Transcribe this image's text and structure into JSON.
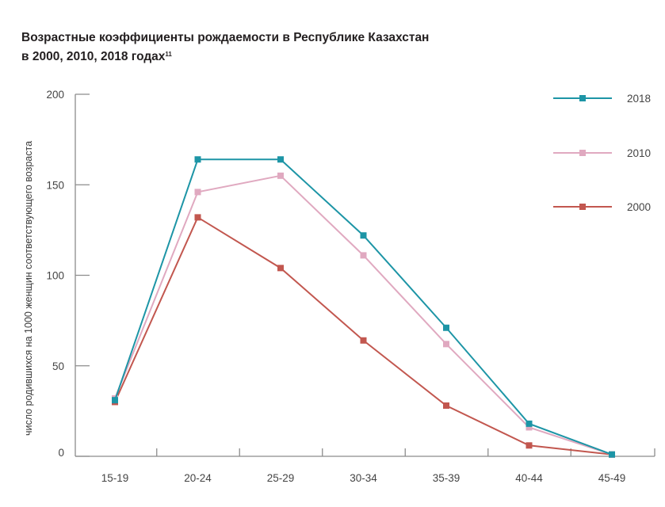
{
  "title": {
    "line1": "Возрастные коэффициенты рождаемости в Республике Казахстан",
    "line2": "в 2000, 2010, 2018 годах",
    "footnote": "11"
  },
  "chart_data": {
    "type": "line",
    "title": "Возрастные коэффициенты рождаемости в Республике Казахстан в 2000, 2010, 2018 годах",
    "xlabel": "",
    "ylabel": "число родившихся на 1000 женщин соответствующего возраста",
    "categories": [
      "15-19",
      "20-24",
      "25-29",
      "30-34",
      "35-39",
      "40-44",
      "45-49"
    ],
    "ylim": [
      0,
      200
    ],
    "yticks": [
      0,
      50,
      100,
      150,
      200
    ],
    "grid": false,
    "legend_position": "top-right",
    "series": [
      {
        "name": "2018",
        "color": "#1d95a6",
        "values": [
          31,
          164,
          164,
          122,
          71,
          18,
          1
        ]
      },
      {
        "name": "2010",
        "color": "#e0a9c0",
        "values": [
          32,
          146,
          155,
          111,
          62,
          16,
          1
        ]
      },
      {
        "name": "2000",
        "color": "#c2574f",
        "values": [
          30,
          132,
          104,
          64,
          28,
          6,
          1
        ]
      }
    ]
  }
}
